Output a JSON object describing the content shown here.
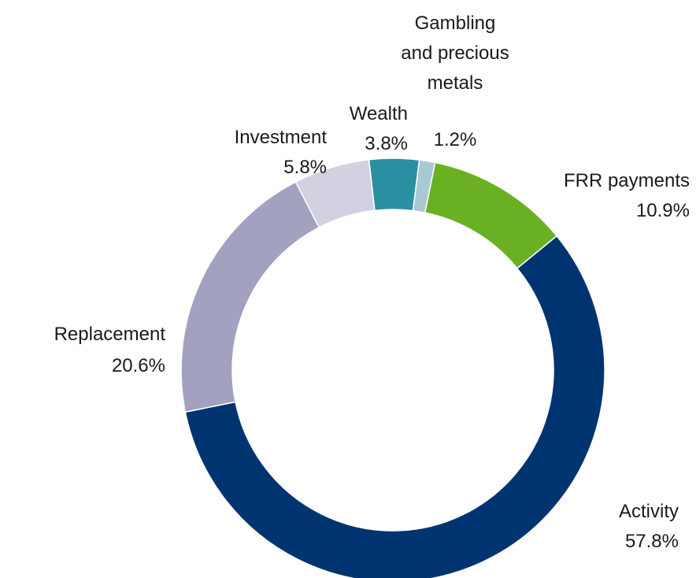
{
  "chart_data": {
    "type": "donut",
    "categories": [
      "FRR payments",
      "Activity",
      "Replacement",
      "Investment",
      "Wealth",
      "Gambling and precious metals"
    ],
    "values": [
      10.9,
      57.8,
      20.6,
      5.8,
      3.8,
      1.2
    ],
    "value_labels": [
      "10.9%",
      "57.8%",
      "20.6%",
      "5.8%",
      "3.8%",
      "1.2%"
    ],
    "colors": [
      "#6ab023",
      "#003470",
      "#a3a1c0",
      "#d2d1e1",
      "#2a8fa0",
      "#a9c8d3"
    ]
  }
}
